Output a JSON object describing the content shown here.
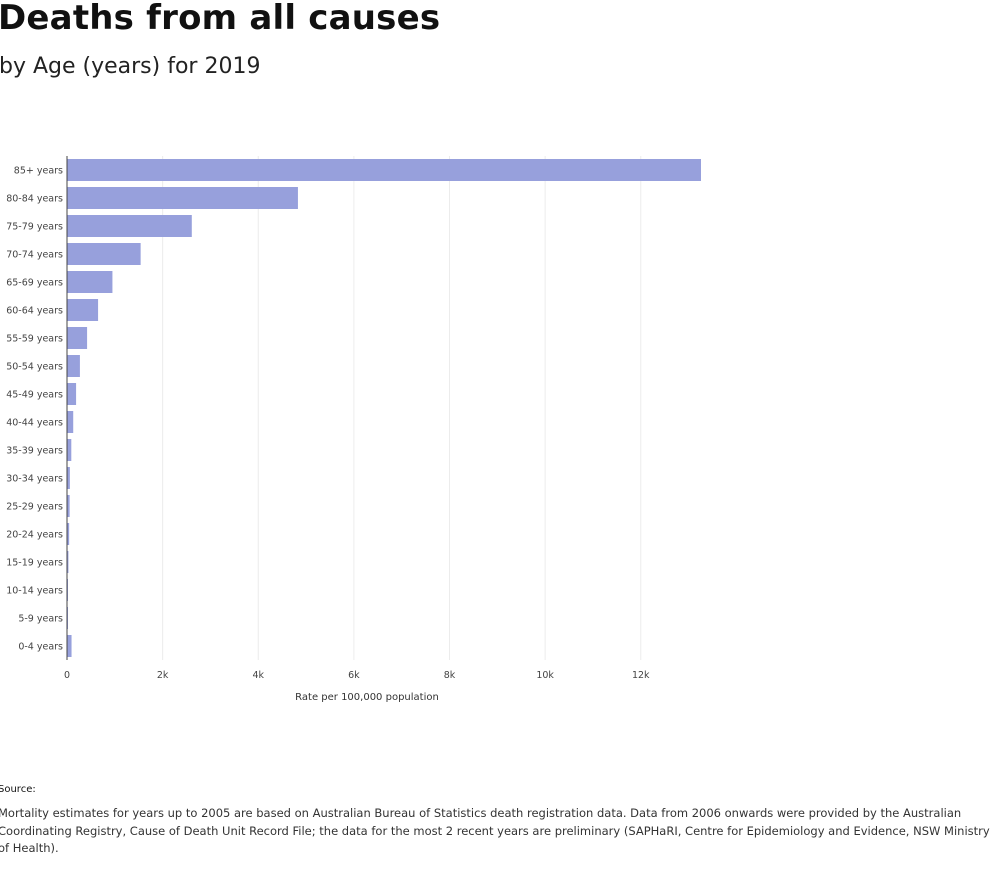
{
  "header": {
    "title": "Deaths from all causes",
    "subtitle": "by Age (years) for 2019"
  },
  "chart_data": {
    "type": "bar",
    "orientation": "horizontal",
    "categories": [
      "85+ years",
      "80-84 years",
      "75-79 years",
      "70-74 years",
      "65-69 years",
      "60-64 years",
      "55-59 years",
      "50-54 years",
      "45-49 years",
      "40-44 years",
      "35-39 years",
      "30-34 years",
      "25-29 years",
      "20-24 years",
      "15-19 years",
      "10-14 years",
      "5-9 years",
      "0-4 years"
    ],
    "values": [
      13260,
      4830,
      2610,
      1540,
      950,
      650,
      420,
      270,
      190,
      130,
      90,
      60,
      55,
      45,
      30,
      10,
      8,
      95
    ],
    "xlabel": "Rate per 100,000 population",
    "ylabel": "",
    "xlim": [
      0,
      13260
    ],
    "x_ticks": [
      0,
      2000,
      4000,
      6000,
      8000,
      10000,
      12000
    ],
    "x_tick_labels": [
      "0",
      "2k",
      "4k",
      "6k",
      "8k",
      "10k",
      "12k"
    ],
    "bar_color": "#97a0dc",
    "grid": true,
    "legend": "none"
  },
  "source": {
    "label": "Source:",
    "text": "Mortality estimates for years up to 2005 are based on Australian Bureau of Statistics death registration data. Data from 2006 onwards were provided by the Australian Coordinating Registry, Cause of Death Unit Record File; the data for the most 2 recent years are preliminary (SAPHaRI, Centre for Epidemiology and Evidence, NSW Ministry of Health)."
  }
}
